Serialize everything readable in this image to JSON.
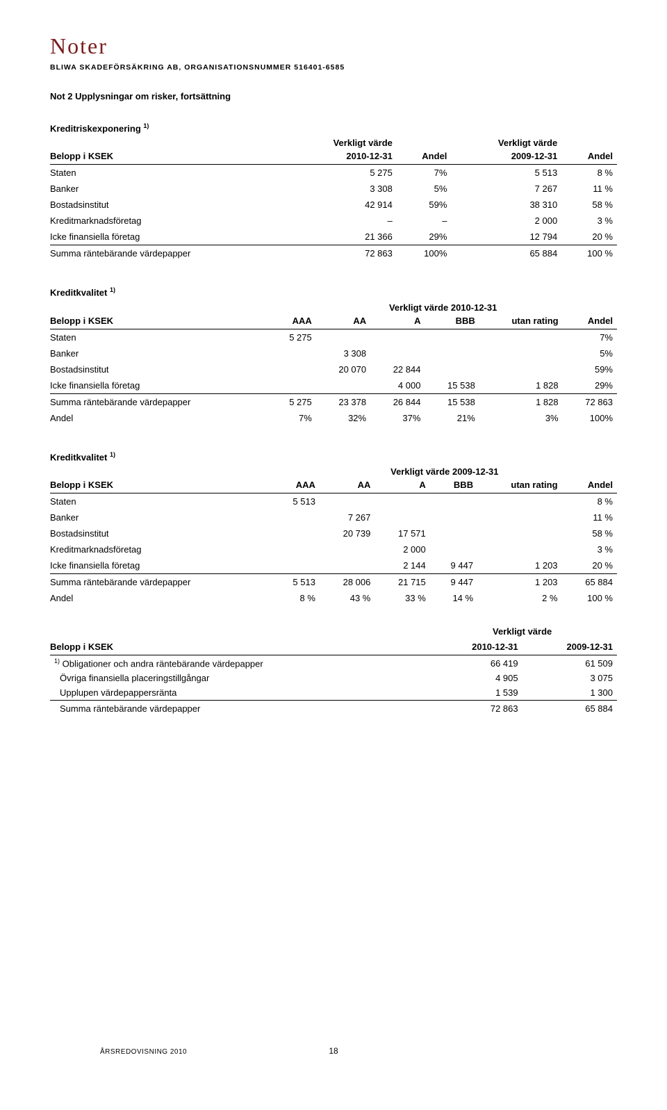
{
  "header": {
    "title": "Noter",
    "subhead": "BLIWA SKADEFÖRSÄKRING AB, ORGANISATIONSNUMMER 516401-6585",
    "note_line": "Not 2  Upplysningar om risker, fortsättning"
  },
  "colors": {
    "title": "#7a1e1e",
    "text": "#000000",
    "rule": "#000000",
    "background": "#ffffff"
  },
  "t1": {
    "title": "Kreditriskexponering",
    "sup": "1)",
    "superhdr_left": "",
    "superhdr_a": "Verkligt värde",
    "superhdr_b": "Verkligt värde",
    "col0": "Belopp i KSEK",
    "col1": "2010-12-31",
    "col2": "Andel",
    "col3": "2009-12-31",
    "col4": "Andel",
    "rows": [
      {
        "label": "Staten",
        "a": "5 275",
        "ap": "7%",
        "b": "5 513",
        "bp": "8 %"
      },
      {
        "label": "Banker",
        "a": "3 308",
        "ap": "5%",
        "b": "7 267",
        "bp": "11 %"
      },
      {
        "label": "Bostadsinstitut",
        "a": "42 914",
        "ap": "59%",
        "b": "38 310",
        "bp": "58 %"
      },
      {
        "label": "Kreditmarknadsföretag",
        "a": "–",
        "ap": "–",
        "b": "2 000",
        "bp": "3 %"
      },
      {
        "label": "Icke finansiella företag",
        "a": "21 366",
        "ap": "29%",
        "b": "12 794",
        "bp": "20 %"
      }
    ],
    "sum": {
      "label": "Summa räntebärande värdepapper",
      "a": "72 863",
      "ap": "100%",
      "b": "65 884",
      "bp": "100 %"
    }
  },
  "t2": {
    "title": "Kreditkvalitet",
    "sup": "1)",
    "span_label": "Verkligt värde 2010-12-31",
    "col0": "Belopp i KSEK",
    "cols": [
      "AAA",
      "AA",
      "A",
      "BBB",
      "utan rating",
      "Andel"
    ],
    "rows": [
      {
        "label": "Staten",
        "c": [
          "5 275",
          "",
          "",
          "",
          "",
          "7%"
        ]
      },
      {
        "label": "Banker",
        "c": [
          "",
          "3 308",
          "",
          "",
          "",
          "5%"
        ]
      },
      {
        "label": "Bostadsinstitut",
        "c": [
          "",
          "20 070",
          "22 844",
          "",
          "",
          "59%"
        ]
      },
      {
        "label": "Icke finansiella företag",
        "c": [
          "",
          "",
          "4 000",
          "15 538",
          "1 828",
          "29%"
        ]
      }
    ],
    "sum": {
      "label": "Summa räntebärande värdepapper",
      "c": [
        "5 275",
        "23 378",
        "26 844",
        "15 538",
        "1 828",
        "72 863"
      ]
    },
    "andel": {
      "label": "Andel",
      "c": [
        "7%",
        "32%",
        "37%",
        "21%",
        "3%",
        "100%"
      ]
    }
  },
  "t3": {
    "title": "Kreditkvalitet",
    "sup": "1)",
    "span_label": "Verkligt värde 2009-12-31",
    "col0": "Belopp i KSEK",
    "cols": [
      "AAA",
      "AA",
      "A",
      "BBB",
      "utan rating",
      "Andel"
    ],
    "rows": [
      {
        "label": "Staten",
        "c": [
          "5 513",
          "",
          "",
          "",
          "",
          "8 %"
        ]
      },
      {
        "label": "Banker",
        "c": [
          "",
          "7 267",
          "",
          "",
          "",
          "11 %"
        ]
      },
      {
        "label": "Bostadsinstitut",
        "c": [
          "",
          "20 739",
          "17 571",
          "",
          "",
          "58 %"
        ]
      },
      {
        "label": "Kreditmarknadsföretag",
        "c": [
          "",
          "",
          "2 000",
          "",
          "",
          "3 %"
        ]
      },
      {
        "label": "Icke finansiella företag",
        "c": [
          "",
          "",
          "2 144",
          "9 447",
          "1 203",
          "20 %"
        ]
      }
    ],
    "sum": {
      "label": "Summa räntebärande värdepapper",
      "c": [
        "5 513",
        "28 006",
        "21 715",
        "9 447",
        "1 203",
        "65 884"
      ]
    },
    "andel": {
      "label": "Andel",
      "c": [
        "8 %",
        "43 %",
        "33 %",
        "14 %",
        "2 %",
        "100 %"
      ]
    }
  },
  "t4": {
    "superhdr": "Verkligt värde",
    "col0": "Belopp i KSEK",
    "col1": "2010-12-31",
    "col2": "2009-12-31",
    "rows": [
      {
        "sup": "1)",
        "label": "Obligationer och andra räntebärande värdepapper",
        "a": "66 419",
        "b": "61 509"
      },
      {
        "sup": "",
        "label": "Övriga finansiella placeringstillgångar",
        "a": "4 905",
        "b": "3 075"
      },
      {
        "sup": "",
        "label": "Upplupen värdepappersränta",
        "a": "1 539",
        "b": "1 300"
      }
    ],
    "sum": {
      "label": "Summa räntebärande värdepapper",
      "a": "72 863",
      "b": "65 884"
    }
  },
  "footer": {
    "left": "ÅRSREDOVISNING 2010",
    "page": "18"
  }
}
